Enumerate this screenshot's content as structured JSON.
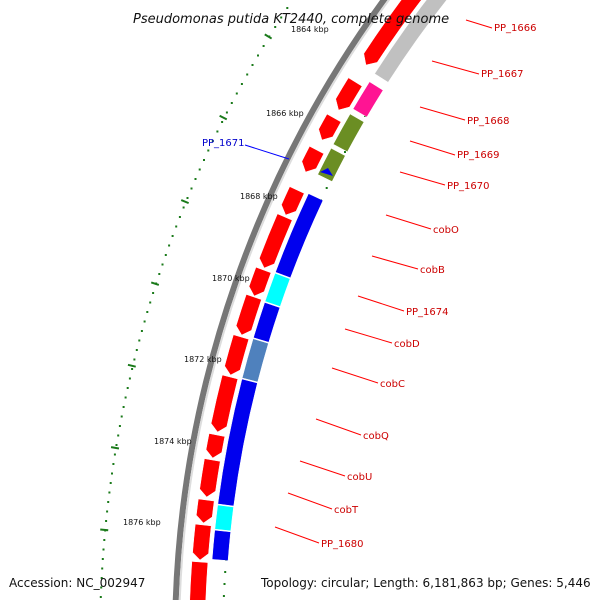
{
  "title": "Pseudomonas putida KT2440, complete genome",
  "footer": {
    "accession": "Accession: NC_002947",
    "summary": "Topology: circular; Length: 6,181,863 bp; Genes: 5,446"
  },
  "ticks": [
    "1864 kbp",
    "1866 kbp",
    "1868 kbp",
    "1870 kbp",
    "1872 kbp",
    "1874 kbp",
    "1876 kbp"
  ],
  "colors": {
    "backbone": "#777777",
    "red": "#ff0000",
    "blue": "#0000ee",
    "cyan": "#00ffff",
    "steelblue": "#4f81bd",
    "magenta": "#ff1493",
    "olive": "#6b8e23",
    "gray": "#c0c0c0",
    "tick": "#1a7a1a",
    "labelLine": "#ff0000",
    "labelLineBlue": "#0000ff"
  },
  "genes": [
    {
      "label": "PP_1666",
      "color": "#ff0000"
    },
    {
      "label": "PP_1667",
      "color": "#ff0000"
    },
    {
      "label": "PP_1668",
      "color": "#ff0000"
    },
    {
      "label": "PP_1669",
      "color": "#ff0000"
    },
    {
      "label": "PP_1670",
      "color": "#ff0000"
    },
    {
      "label": "cobO",
      "color": "#ff0000"
    },
    {
      "label": "cobB",
      "color": "#ff0000"
    },
    {
      "label": "PP_1674",
      "color": "#ff0000"
    },
    {
      "label": "cobD",
      "color": "#ff0000"
    },
    {
      "label": "cobC",
      "color": "#ff0000"
    },
    {
      "label": "cobQ",
      "color": "#ff0000"
    },
    {
      "label": "cobU",
      "color": "#ff0000"
    },
    {
      "label": "cobT",
      "color": "#ff0000"
    },
    {
      "label": "PP_1680",
      "color": "#ff0000"
    }
  ],
  "reverse_label": {
    "label": "PP_1671",
    "color": "#0000ff"
  }
}
